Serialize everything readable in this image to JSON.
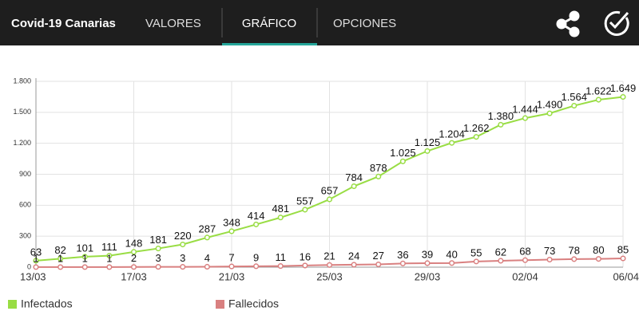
{
  "app": {
    "title": "Covid-19 Canarias",
    "tabs": [
      "VALORES",
      "GRÁFICO",
      "OPCIONES"
    ]
  },
  "chart_data": {
    "type": "line",
    "categories": [
      "13/03",
      null,
      null,
      null,
      "17/03",
      null,
      null,
      null,
      "21/03",
      null,
      null,
      null,
      "25/03",
      null,
      null,
      null,
      "29/03",
      null,
      null,
      null,
      "02/04",
      null,
      null,
      null,
      "06/04"
    ],
    "series": [
      {
        "name": "Infectados",
        "color": "#99dd44",
        "values": [
          63,
          82,
          101,
          111,
          148,
          181,
          220,
          287,
          348,
          414,
          481,
          557,
          657,
          784,
          878,
          1025,
          1125,
          1204,
          1262,
          1380,
          1444,
          1490,
          1564,
          1622,
          1649
        ],
        "value_labels": [
          "63",
          "82",
          "101",
          "111",
          "148",
          "181",
          "220",
          "287",
          "348",
          "414",
          "481",
          "557",
          "657",
          "784",
          "878",
          "1.025",
          "1.125",
          "1.204",
          "1.262",
          "1.380",
          "1.444",
          "1.490",
          "1.564",
          "1.622",
          "1.649"
        ]
      },
      {
        "name": "Fallecidos",
        "color": "#d98080",
        "values": [
          1,
          1,
          1,
          1,
          2,
          3,
          3,
          4,
          7,
          9,
          11,
          16,
          21,
          24,
          27,
          36,
          39,
          40,
          55,
          62,
          68,
          73,
          78,
          80,
          85
        ]
      }
    ],
    "ylim": [
      0,
      1800
    ],
    "yticks": [
      0,
      300,
      600,
      900,
      {
        "value": 1200,
        "label": "1.200"
      },
      {
        "value": 1500,
        "label": "1.500"
      },
      {
        "value": 1800,
        "label": "1.800"
      }
    ],
    "grid": true,
    "legend": "bottom"
  }
}
